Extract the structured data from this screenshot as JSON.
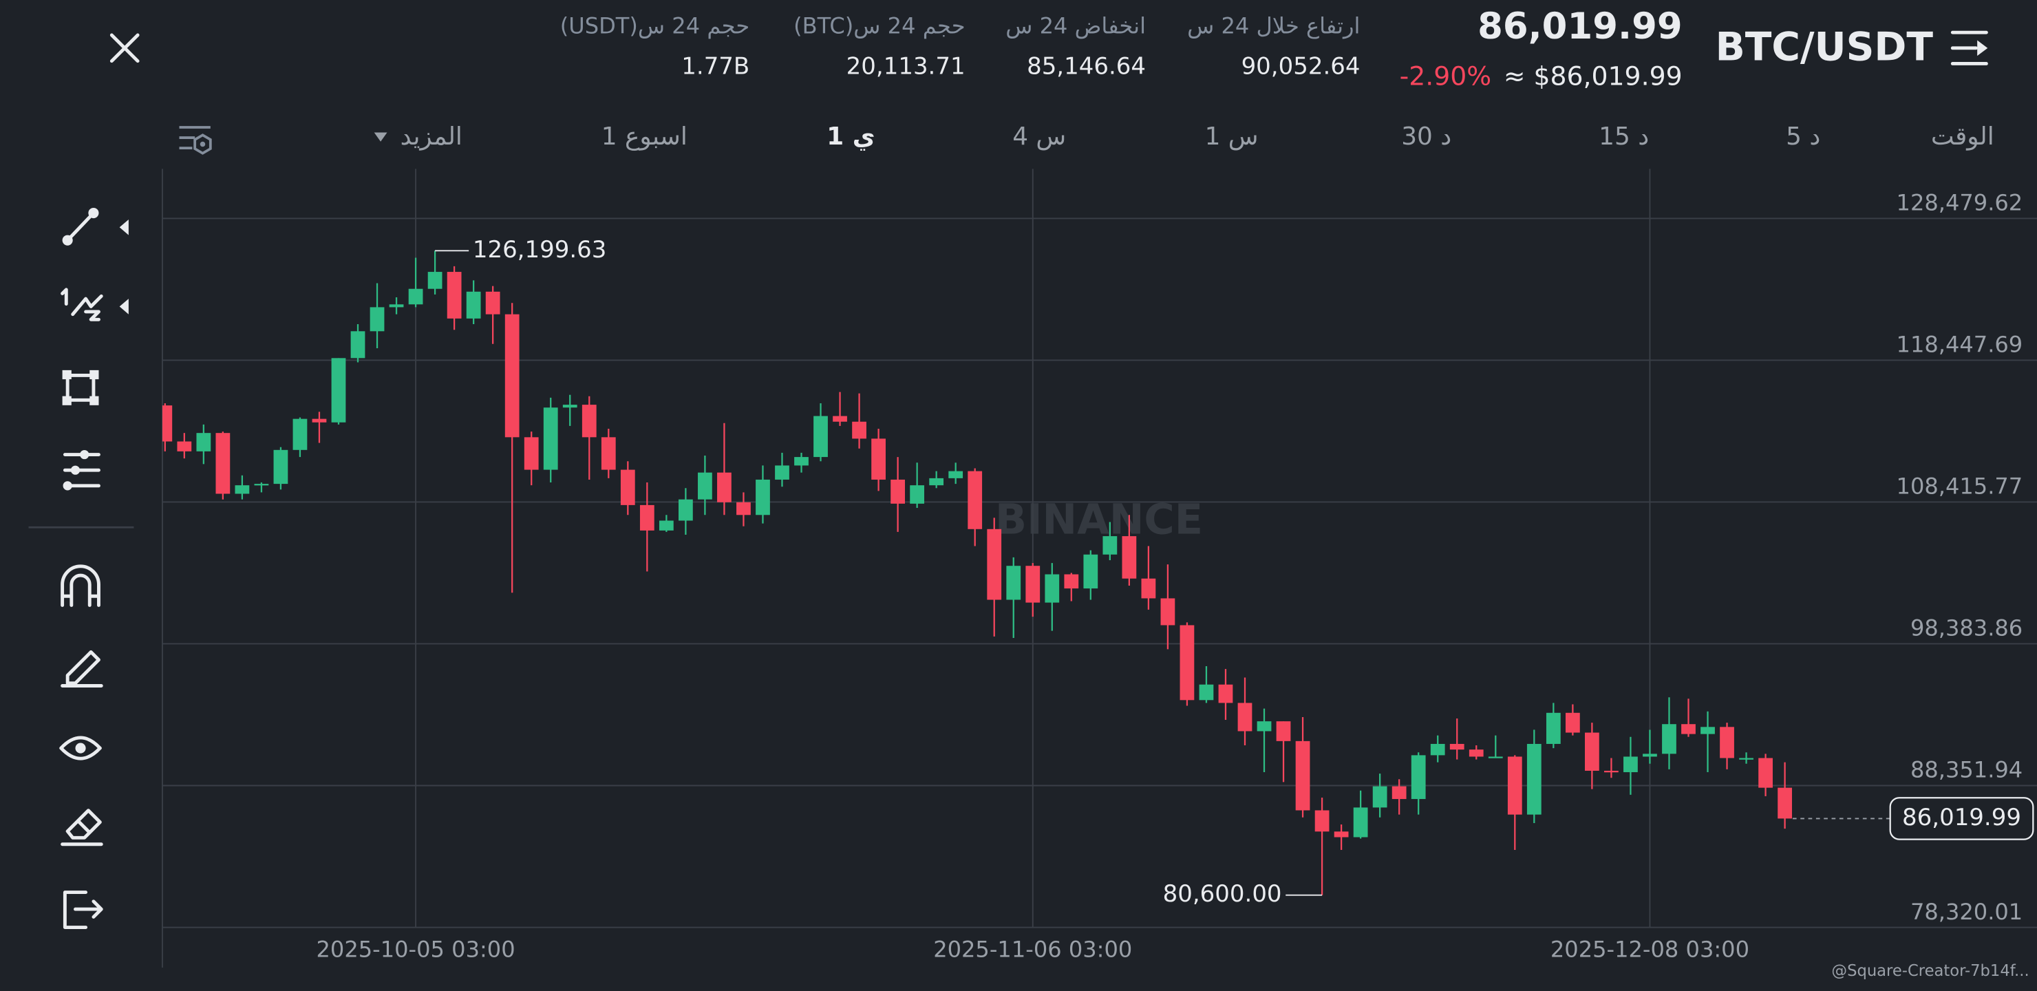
{
  "header": {
    "symbol": "BTC/USDT",
    "price": "86,019.99",
    "price_usd": "≈ $86,019.99",
    "change": "-2.90%",
    "stats": [
      {
        "label": "ارتفاع خلال 24 س",
        "value": "90,052.64"
      },
      {
        "label": "انخفاض 24 س",
        "value": "85,146.64"
      },
      {
        "label": "حجم 24 س(BTC)",
        "value": "20,113.71"
      },
      {
        "label": "حجم 24 س(USDT)",
        "value": "1.77B"
      }
    ]
  },
  "intervals": [
    "الوقت",
    "5 د",
    "15 د",
    "30 د",
    "1 س",
    "4 س",
    "1 ي",
    "1 اسبوع",
    "المزيد"
  ],
  "watermark": "BINANCE",
  "footer": "@Square-Creator-7b14f...",
  "chart_data": {
    "type": "candlestick",
    "categories": [
      null,
      null,
      null,
      null,
      null,
      null,
      null,
      null,
      null,
      null,
      null,
      null,
      null,
      "2025-10-05 03:00",
      null,
      null,
      null,
      null,
      null,
      null,
      null,
      null,
      null,
      null,
      null,
      null,
      null,
      null,
      null,
      null,
      null,
      null,
      null,
      null,
      null,
      null,
      null,
      null,
      null,
      null,
      null,
      null,
      null,
      null,
      null,
      "2025-11-06 03:00",
      null,
      null,
      null,
      null,
      null,
      null,
      null,
      null,
      null,
      null,
      null,
      null,
      null,
      null,
      null,
      null,
      null,
      null,
      null,
      null,
      null,
      null,
      null,
      null,
      null,
      null,
      null,
      null,
      null,
      null,
      null,
      "2025-12-08 03:00",
      null,
      null,
      null,
      null,
      null,
      null,
      null
    ],
    "open": [
      115250,
      112700,
      112000,
      113300,
      109000,
      109600,
      109700,
      112100,
      114300,
      114050,
      118600,
      120500,
      122200,
      122400,
      123500,
      124700,
      121400,
      123300,
      121700,
      113000,
      110700,
      115100,
      115300,
      113000,
      110700,
      108200,
      106400,
      107100,
      108600,
      110500,
      108400,
      107500,
      110000,
      111000,
      111600,
      114500,
      114100,
      112900,
      110000,
      108300,
      109600,
      110100,
      110600,
      106500,
      101500,
      103900,
      101300,
      103300,
      102300,
      104700,
      106000,
      103000,
      101600,
      99700,
      94400,
      95500,
      94200,
      92200,
      92900,
      91500,
      86600,
      85100,
      84700,
      86800,
      88300,
      87400,
      90500,
      91300,
      90900,
      90400,
      90400,
      86300,
      91300,
      93500,
      92100,
      89400,
      89300,
      90400,
      90600,
      92700,
      92000,
      92500,
      90300,
      90300,
      88200
    ],
    "high": [
      115400,
      113300,
      113900,
      113400,
      110300,
      109800,
      112300,
      114400,
      114800,
      118600,
      121000,
      123900,
      122900,
      125700,
      126199.63,
      125100,
      124100,
      123700,
      122500,
      113400,
      115800,
      116000,
      115900,
      113600,
      111300,
      109800,
      107500,
      109400,
      111700,
      114000,
      109100,
      111000,
      111900,
      111900,
      115400,
      116200,
      116100,
      113600,
      111600,
      111200,
      110600,
      111200,
      110800,
      107300,
      104500,
      104100,
      104100,
      103400,
      105000,
      107000,
      107500,
      105300,
      104000,
      99900,
      96800,
      96600,
      96000,
      93800,
      92900,
      93200,
      87500,
      85600,
      88000,
      89200,
      88800,
      90700,
      91900,
      93100,
      91200,
      91900,
      90500,
      92300,
      94200,
      94100,
      92800,
      90300,
      91800,
      92300,
      94600,
      94500,
      93600,
      92800,
      90700,
      90600,
      90000
    ],
    "low": [
      112000,
      111500,
      111100,
      108600,
      108600,
      109100,
      109300,
      111600,
      112600,
      113900,
      118300,
      119300,
      121700,
      122200,
      123100,
      120600,
      121000,
      119600,
      102000,
      109600,
      109800,
      113800,
      110000,
      110100,
      107500,
      103500,
      106300,
      106100,
      107500,
      107500,
      106700,
      106900,
      109500,
      110500,
      111300,
      113800,
      112200,
      109200,
      106300,
      108000,
      109400,
      109700,
      105300,
      98900,
      98800,
      100300,
      99300,
      101400,
      101500,
      104300,
      102500,
      100800,
      98000,
      94000,
      94200,
      93000,
      91200,
      89300,
      88600,
      86100,
      80600,
      83800,
      84600,
      86100,
      86300,
      86300,
      90000,
      90200,
      90200,
      90300,
      83800,
      85700,
      91000,
      91900,
      88100,
      88900,
      87700,
      89900,
      89500,
      91800,
      89300,
      89500,
      89900,
      87600,
      85300
    ],
    "close": [
      112700,
      112000,
      113300,
      109000,
      109600,
      109700,
      112100,
      114300,
      114050,
      118600,
      120500,
      122200,
      122400,
      123500,
      124700,
      121400,
      123300,
      121700,
      113000,
      110700,
      115100,
      115300,
      113000,
      110700,
      108200,
      106400,
      107100,
      108600,
      110500,
      108400,
      107500,
      110000,
      111000,
      111600,
      114500,
      114100,
      112900,
      110000,
      108300,
      109600,
      110100,
      110600,
      106500,
      101500,
      103900,
      101300,
      103300,
      102300,
      104700,
      106000,
      103000,
      101600,
      99700,
      94400,
      95500,
      94200,
      92200,
      92900,
      91500,
      86600,
      85100,
      84700,
      86800,
      88300,
      87400,
      90500,
      91300,
      90900,
      90400,
      90400,
      86300,
      91300,
      93500,
      92100,
      89400,
      89300,
      90400,
      90600,
      92700,
      92000,
      92500,
      90300,
      90300,
      88200,
      86019.99
    ],
    "up_color": "#2ebd85",
    "down_color": "#f6465d",
    "ylim": [
      78320.01,
      131990
    ],
    "yticks": [
      {
        "value": 78320.01,
        "label": "78,320.01"
      },
      {
        "value": 88351.94,
        "label": "88,351.94"
      },
      {
        "value": 98383.86,
        "label": "98,383.86"
      },
      {
        "value": 108415.77,
        "label": "108,415.77"
      },
      {
        "value": 118447.69,
        "label": "118,447.69"
      },
      {
        "value": 128479.62,
        "label": "128,479.62"
      }
    ],
    "grid": true,
    "annotations": [
      {
        "index": 14,
        "value": 126199.63,
        "label": "126,199.63"
      },
      {
        "index": 60,
        "value": 80600.0,
        "label": "80,600.00"
      }
    ],
    "last_price": {
      "value": 86019.99,
      "label": "86,019.99"
    }
  }
}
